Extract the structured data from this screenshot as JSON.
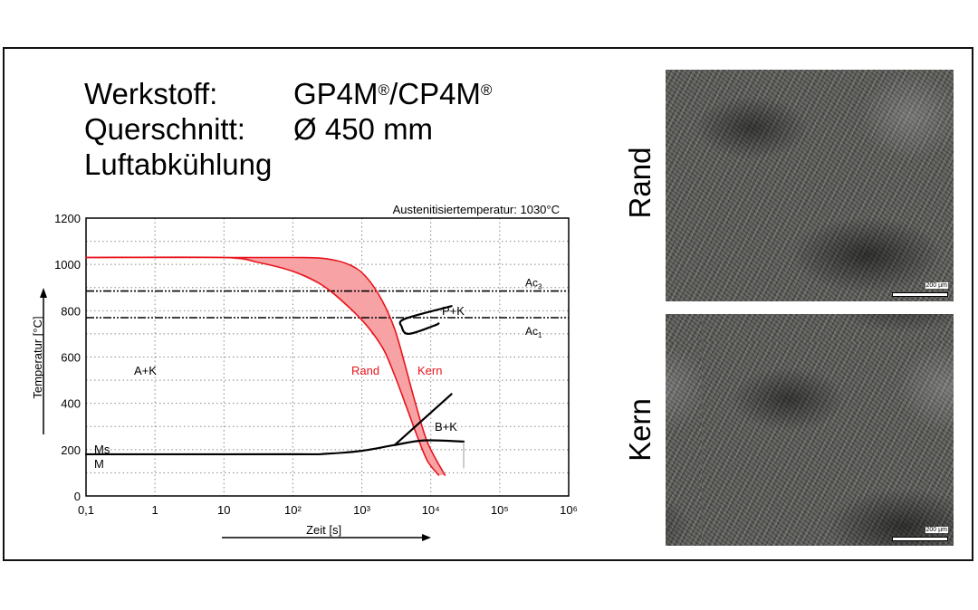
{
  "header": {
    "material_label": "Werkstoff:",
    "material_value": "GP4M®/CP4M®",
    "section_label": "Querschnitt:",
    "section_value": "Ø 450 mm",
    "cooling": "Luftabkühlung"
  },
  "micrographs": [
    {
      "label": "Rand",
      "scale": "200 µm"
    },
    {
      "label": "Kern",
      "scale": "200 µm"
    }
  ],
  "colors": {
    "cooling_curves": "#e8141c",
    "band_fill": "#f7a3a6",
    "lines": "#000000"
  },
  "chart_data": {
    "type": "line",
    "title": "Austenitisiertemperatur: 1030°C",
    "xlabel": "Zeit [s]",
    "ylabel": "Temperatur [°C]",
    "xscale": "log",
    "xlim": [
      0.1,
      1000000
    ],
    "ylim": [
      0,
      1200
    ],
    "grid": true,
    "x_ticks": [
      0.1,
      1,
      10,
      100,
      1000,
      10000,
      100000,
      1000000
    ],
    "x_tick_labels": [
      "0,1",
      "1",
      "10",
      "10²",
      "10³",
      "10⁴",
      "10⁵",
      "10⁶"
    ],
    "y_ticks": [
      0,
      200,
      400,
      600,
      800,
      1000,
      1200
    ],
    "y_tick_labels": [
      "0",
      "200",
      "400",
      "600",
      "800",
      "1000",
      "1200"
    ],
    "reference_lines": [
      {
        "name": "Ac3",
        "label": "Ac",
        "sub": "3",
        "y": 885
      },
      {
        "name": "Ac1",
        "label": "Ac",
        "sub": "1",
        "y": 770
      }
    ],
    "series": [
      {
        "name": "Rand",
        "color": "#e8141c",
        "x": [
          0.1,
          10,
          30,
          100,
          300,
          1000,
          2000,
          3000,
          4500,
          6500,
          9000,
          13000
        ],
        "y": [
          1030,
          1030,
          1010,
          970,
          900,
          760,
          640,
          520,
          380,
          250,
          150,
          90
        ]
      },
      {
        "name": "Kern",
        "color": "#e8141c",
        "x": [
          0.1,
          10,
          100,
          300,
          700,
          1200,
          2000,
          3000,
          4200,
          6000,
          9000,
          16000
        ],
        "y": [
          1030,
          1030,
          1030,
          1025,
          995,
          940,
          840,
          720,
          570,
          400,
          230,
          90
        ]
      },
      {
        "name": "Ms",
        "x": [
          0.1,
          100,
          300,
          1000,
          3000,
          8000,
          30000
        ],
        "y": [
          180,
          180,
          182,
          195,
          220,
          240,
          235
        ]
      },
      {
        "name": "B+K boundary",
        "x": [
          3000,
          20000
        ],
        "y": [
          220,
          440
        ]
      },
      {
        "name": "P+K nose",
        "x": [
          20000,
          4200,
          3800,
          4800,
          11000,
          13000
        ],
        "y": [
          820,
          765,
          730,
          700,
          735,
          745
        ]
      }
    ],
    "annotations": [
      "A+K",
      "P+K",
      "B+K",
      "Ms",
      "M",
      "Rand",
      "Kern"
    ]
  }
}
